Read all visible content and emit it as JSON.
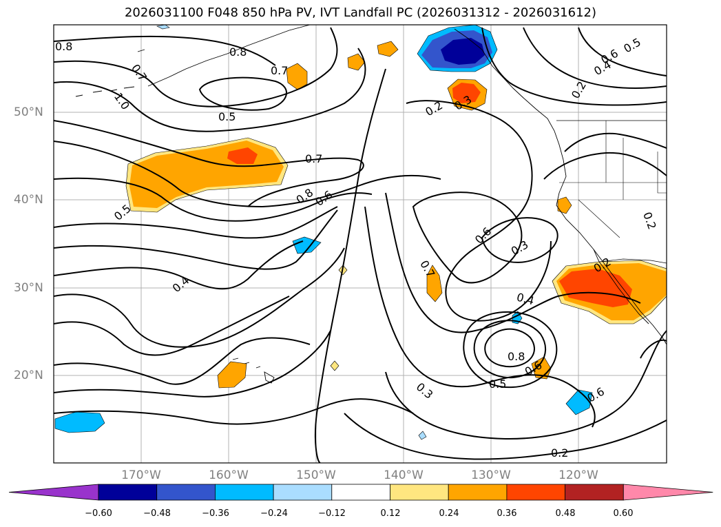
{
  "title": "2026031100 F048 850 hPa PV, IVT Landfall PC (2026031312 - 2026031612)",
  "lat_labels": [
    "50°N",
    "40°N",
    "30°N",
    "20°N"
  ],
  "lon_labels": [
    "170°W",
    "160°W",
    "150°W",
    "140°W",
    "130°W",
    "120°W"
  ],
  "colorbar": {
    "ticks": [
      "−0.60",
      "−0.48",
      "−0.36",
      "−0.24",
      "−0.12",
      "0.12",
      "0.24",
      "0.36",
      "0.48",
      "0.60"
    ],
    "colors": [
      "#9933cc",
      "#000099",
      "#3355cc",
      "#00bbff",
      "#aaddff",
      "#ffffff",
      "#ffe680",
      "#ffa500",
      "#ff4500",
      "#b22222",
      "#ff88aa"
    ]
  },
  "contour_labels": [
    "0.8",
    "0.7",
    "1.0",
    "0.8",
    "0.7",
    "0.5",
    "0.2",
    "0.3",
    "0.6",
    "0.5",
    "0.4",
    "0.2",
    "0.7",
    "0.5",
    "0.8",
    "0.6",
    "0.7",
    "0.6",
    "0.3",
    "0.2",
    "0.4",
    "0.4",
    "0.8",
    "0.6",
    "0.5",
    "0.3",
    "0.6",
    "0.2",
    "0.2"
  ]
}
